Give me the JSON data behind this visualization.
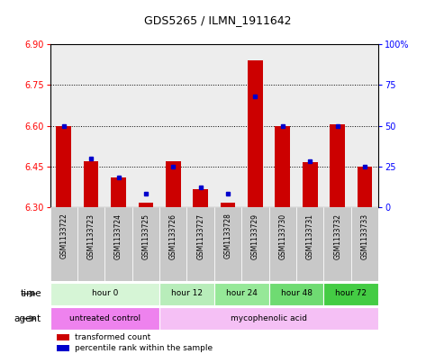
{
  "title": "GDS5265 / ILMN_1911642",
  "samples": [
    "GSM1133722",
    "GSM1133723",
    "GSM1133724",
    "GSM1133725",
    "GSM1133726",
    "GSM1133727",
    "GSM1133728",
    "GSM1133729",
    "GSM1133730",
    "GSM1133731",
    "GSM1133732",
    "GSM1133733"
  ],
  "red_values": [
    6.6,
    6.47,
    6.41,
    6.315,
    6.47,
    6.365,
    6.315,
    6.84,
    6.6,
    6.465,
    6.605,
    6.45
  ],
  "blue_pct": [
    50,
    30,
    18,
    8,
    25,
    12,
    8,
    68,
    50,
    28,
    50,
    25
  ],
  "y_min": 6.3,
  "y_max": 6.9,
  "y_ticks": [
    6.3,
    6.45,
    6.6,
    6.75,
    6.9
  ],
  "right_ticks": [
    0,
    25,
    50,
    75,
    100
  ],
  "time_groups": [
    {
      "label": "hour 0",
      "start": 0,
      "end": 4,
      "color": "#d6f5d6"
    },
    {
      "label": "hour 12",
      "start": 4,
      "end": 6,
      "color": "#b8edba"
    },
    {
      "label": "hour 24",
      "start": 6,
      "end": 8,
      "color": "#96e898"
    },
    {
      "label": "hour 48",
      "start": 8,
      "end": 10,
      "color": "#6fdb72"
    },
    {
      "label": "hour 72",
      "start": 10,
      "end": 12,
      "color": "#44cc44"
    }
  ],
  "agent_colors": [
    "#ee82ee",
    "#f5c0f5"
  ],
  "agent_groups": [
    {
      "label": "untreated control",
      "start": 0,
      "end": 4
    },
    {
      "label": "mycophenolic acid",
      "start": 4,
      "end": 12
    }
  ],
  "bar_color": "#cc0000",
  "blue_color": "#0000cc",
  "legend_red": "transformed count",
  "legend_blue": "percentile rank within the sample",
  "col_bg_even": "#d0d0d0",
  "col_bg_odd": "#e0e0e0"
}
